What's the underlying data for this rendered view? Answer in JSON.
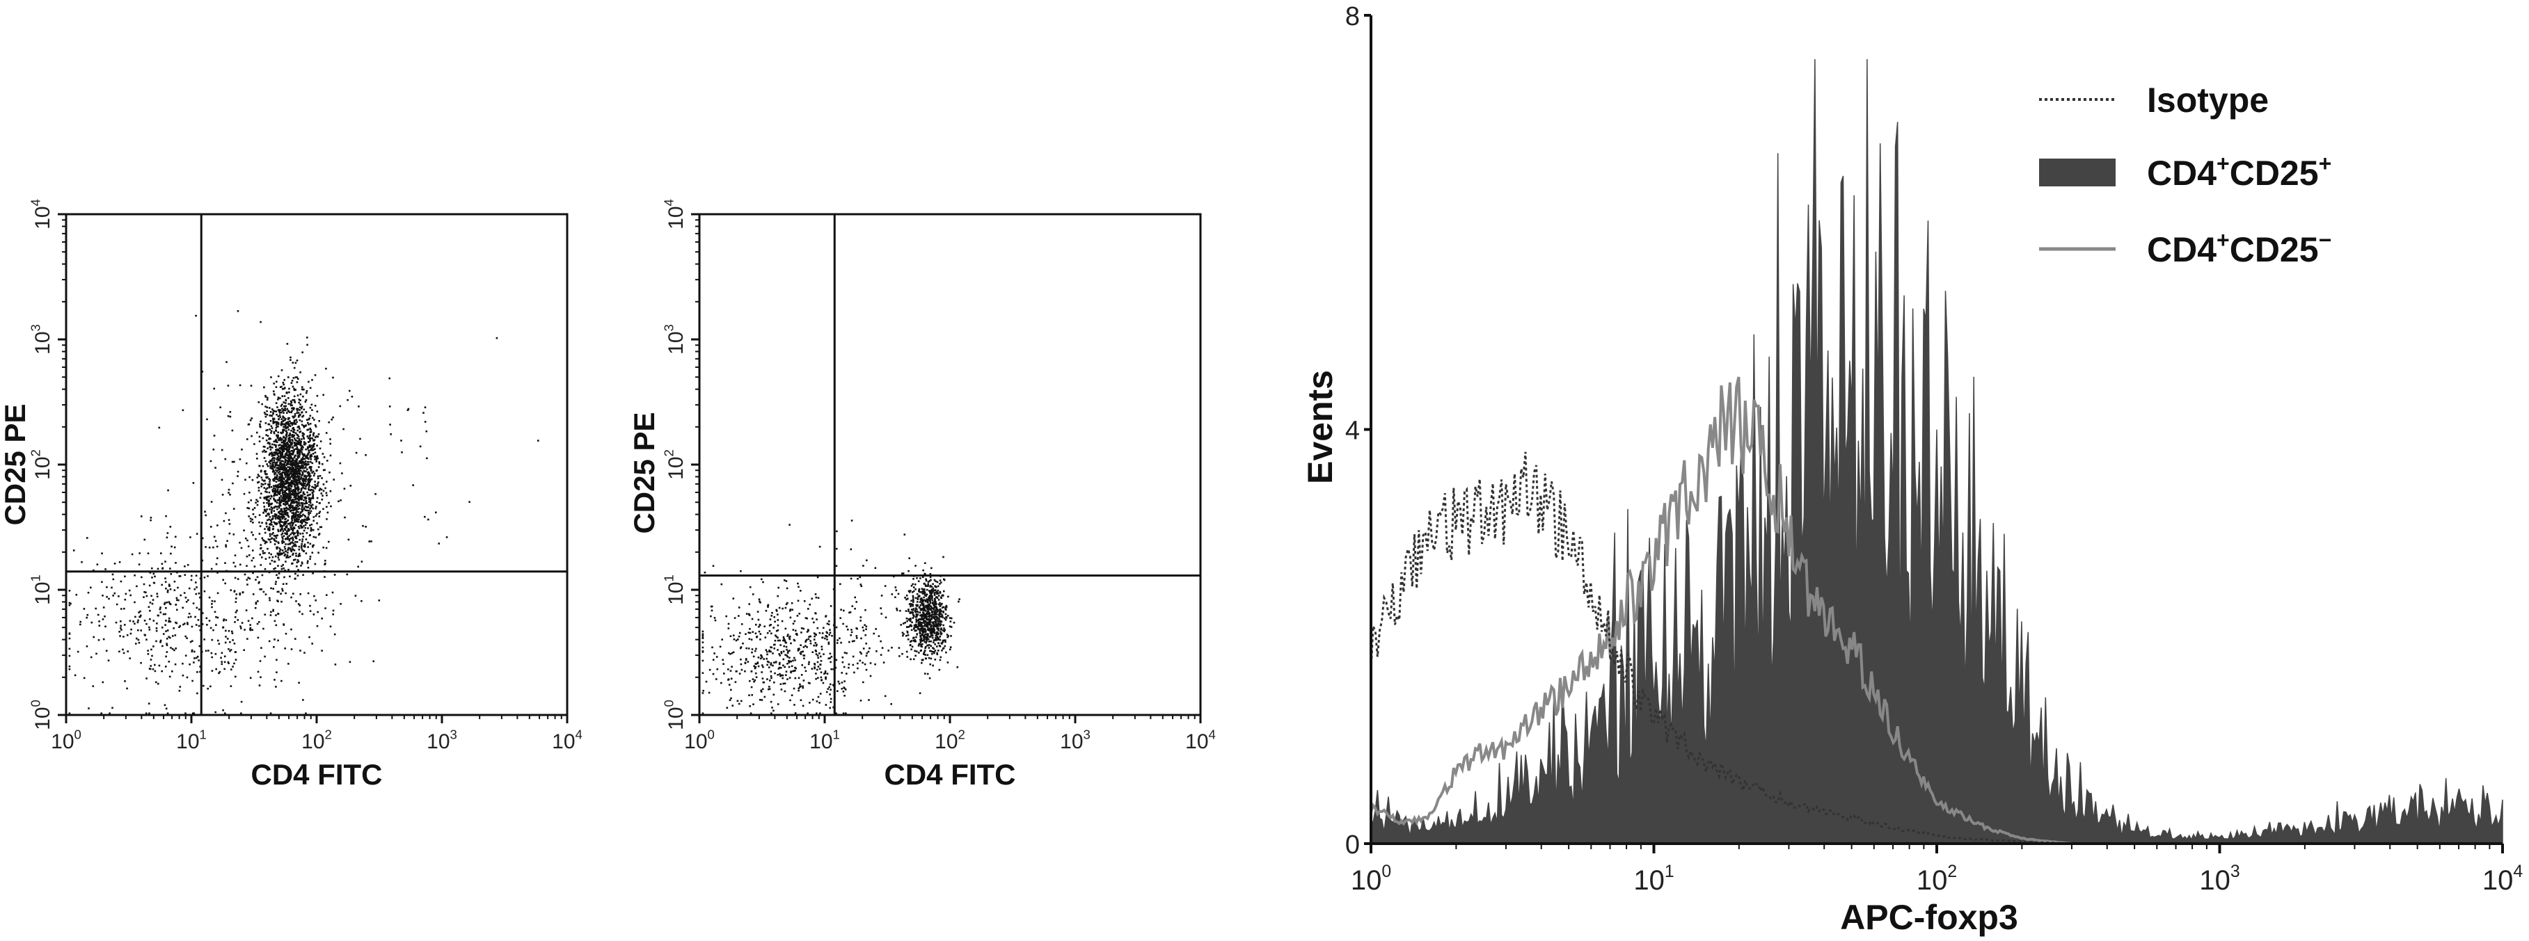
{
  "chart_data": [
    {
      "type": "scatter",
      "xlabel": "CD4 FITC",
      "ylabel": "CD25 PE",
      "x_scale": "log",
      "y_scale": "log",
      "xlim": [
        1,
        10000
      ],
      "ylim": [
        1,
        10000
      ],
      "x_ticks": [
        {
          "v": 1,
          "base": "10",
          "exp": "0"
        },
        {
          "v": 10,
          "base": "10",
          "exp": "1"
        },
        {
          "v": 100,
          "base": "10",
          "exp": "2"
        },
        {
          "v": 1000,
          "base": "10",
          "exp": "3"
        },
        {
          "v": 10000,
          "base": "10",
          "exp": "4"
        }
      ],
      "y_ticks": [
        {
          "v": 1,
          "base": "10",
          "exp": "0"
        },
        {
          "v": 10,
          "base": "10",
          "exp": "1"
        },
        {
          "v": 100,
          "base": "10",
          "exp": "2"
        },
        {
          "v": 1000,
          "base": "10",
          "exp": "3"
        },
        {
          "v": 10000,
          "base": "10",
          "exp": "4"
        }
      ],
      "quadrant_gates": {
        "x": 12,
        "y": 14
      },
      "populations": [
        {
          "count": 2200,
          "center": [
            60,
            80
          ],
          "spread": [
            0.11,
            0.32
          ]
        },
        {
          "count": 500,
          "center": [
            8,
            6
          ],
          "spread": [
            0.45,
            0.35
          ]
        },
        {
          "count": 350,
          "center": [
            45,
            40
          ],
          "spread": [
            0.3,
            0.6
          ]
        },
        {
          "count": 40,
          "center": [
            400,
            120
          ],
          "spread": [
            0.4,
            0.35
          ]
        }
      ]
    },
    {
      "type": "scatter",
      "xlabel": "CD4 FITC",
      "ylabel": "CD25 PE",
      "x_scale": "log",
      "y_scale": "log",
      "xlim": [
        1,
        10000
      ],
      "ylim": [
        1,
        10000
      ],
      "x_ticks": [
        {
          "v": 1,
          "base": "10",
          "exp": "0"
        },
        {
          "v": 10,
          "base": "10",
          "exp": "1"
        },
        {
          "v": 100,
          "base": "10",
          "exp": "2"
        },
        {
          "v": 1000,
          "base": "10",
          "exp": "3"
        },
        {
          "v": 10000,
          "base": "10",
          "exp": "4"
        }
      ],
      "y_ticks": [
        {
          "v": 1,
          "base": "10",
          "exp": "0"
        },
        {
          "v": 10,
          "base": "10",
          "exp": "1"
        },
        {
          "v": 100,
          "base": "10",
          "exp": "2"
        },
        {
          "v": 1000,
          "base": "10",
          "exp": "3"
        },
        {
          "v": 10000,
          "base": "10",
          "exp": "4"
        }
      ],
      "quadrant_gates": {
        "x": 12,
        "y": 13
      },
      "populations": [
        {
          "count": 800,
          "center": [
            65,
            6
          ],
          "spread": [
            0.08,
            0.16
          ]
        },
        {
          "count": 600,
          "center": [
            5,
            3
          ],
          "spread": [
            0.35,
            0.25
          ]
        },
        {
          "count": 60,
          "center": [
            20,
            8
          ],
          "spread": [
            0.3,
            0.3
          ]
        }
      ]
    },
    {
      "type": "area",
      "xlabel": "APC-foxp3",
      "ylabel": "Events",
      "x_scale": "log",
      "xlim": [
        1,
        10000
      ],
      "ylim": [
        0,
        8
      ],
      "x_ticks": [
        {
          "v": 1,
          "base": "10",
          "exp": "0"
        },
        {
          "v": 10,
          "base": "10",
          "exp": "1"
        },
        {
          "v": 100,
          "base": "10",
          "exp": "2"
        },
        {
          "v": 1000,
          "base": "10",
          "exp": "3"
        },
        {
          "v": 10000,
          "base": "10",
          "exp": "4"
        }
      ],
      "y_ticks": [
        {
          "v": 0,
          "label": "0"
        },
        {
          "v": 4,
          "label": "4"
        },
        {
          "v": 8,
          "label": "8"
        }
      ],
      "legend_position": "top-right",
      "legend": [
        {
          "name": "Isotype",
          "sup": "",
          "name2": "",
          "sup2": ""
        },
        {
          "name": "CD4",
          "sup": "+",
          "name2": "CD25",
          "sup2": "+"
        },
        {
          "name": "CD4",
          "sup": "+",
          "name2": "CD25",
          "sup2": "−"
        }
      ],
      "series": [
        {
          "key": "isotype",
          "style": "dotted",
          "color": "#333333",
          "points": [
            [
              1,
              1.9
            ],
            [
              1.1,
              2.1
            ],
            [
              1.3,
              2.5
            ],
            [
              1.5,
              2.8
            ],
            [
              1.8,
              3.1
            ],
            [
              2.1,
              3.1
            ],
            [
              2.5,
              3.2
            ],
            [
              3,
              3.2
            ],
            [
              3.5,
              3.4
            ],
            [
              4,
              3.3
            ],
            [
              4.6,
              3.1
            ],
            [
              5.5,
              2.7
            ],
            [
              6.5,
              2.2
            ],
            [
              7.5,
              1.8
            ],
            [
              9,
              1.4
            ],
            [
              11,
              1.1
            ],
            [
              15,
              0.8
            ],
            [
              20,
              0.6
            ],
            [
              30,
              0.4
            ],
            [
              50,
              0.25
            ],
            [
              80,
              0.12
            ],
            [
              120,
              0.05
            ],
            [
              200,
              0.02
            ],
            [
              300,
              0
            ]
          ]
        },
        {
          "key": "cd25pos",
          "style": "filled",
          "color": "#444444",
          "points": [
            [
              1,
              0.3
            ],
            [
              1.5,
              0.15
            ],
            [
              2,
              0.2
            ],
            [
              3,
              0.4
            ],
            [
              4,
              0.7
            ],
            [
              5,
              0.9
            ],
            [
              6,
              1.2
            ],
            [
              7,
              1.6
            ],
            [
              8,
              1.8
            ],
            [
              10,
              1.9
            ],
            [
              12,
              1.7
            ],
            [
              15,
              2.2
            ],
            [
              18,
              2.6
            ],
            [
              21,
              3.1
            ],
            [
              25,
              3.3
            ],
            [
              30,
              3.6
            ],
            [
              35,
              4.2
            ],
            [
              40,
              4.4
            ],
            [
              45,
              4.5
            ],
            [
              50,
              4.3
            ],
            [
              55,
              4.6
            ],
            [
              60,
              4.4
            ],
            [
              70,
              4.0
            ],
            [
              80,
              3.9
            ],
            [
              100,
              3.4
            ],
            [
              120,
              2.8
            ],
            [
              150,
              2.3
            ],
            [
              200,
              1.5
            ],
            [
              250,
              0.7
            ],
            [
              300,
              0.45
            ],
            [
              400,
              0.25
            ],
            [
              500,
              0.12
            ],
            [
              700,
              0.08
            ],
            [
              1000,
              0.05
            ],
            [
              1500,
              0.12
            ],
            [
              2000,
              0.12
            ],
            [
              3000,
              0.25
            ],
            [
              5000,
              0.32
            ],
            [
              8000,
              0.35
            ],
            [
              10000,
              0.3
            ]
          ]
        },
        {
          "key": "cd25neg",
          "style": "line",
          "color": "#888888",
          "points": [
            [
              1,
              0.35
            ],
            [
              1.3,
              0.2
            ],
            [
              1.6,
              0.25
            ],
            [
              2,
              0.7
            ],
            [
              2.5,
              0.9
            ],
            [
              3,
              0.9
            ],
            [
              4,
              1.3
            ],
            [
              5,
              1.5
            ],
            [
              6,
              1.8
            ],
            [
              7,
              2.0
            ],
            [
              8,
              2.3
            ],
            [
              10,
              2.7
            ],
            [
              12,
              3.2
            ],
            [
              14,
              3.5
            ],
            [
              17,
              4.0
            ],
            [
              20,
              4.1
            ],
            [
              23,
              3.9
            ],
            [
              26,
              3.5
            ],
            [
              30,
              3.1
            ],
            [
              35,
              2.5
            ],
            [
              40,
              2.2
            ],
            [
              50,
              1.9
            ],
            [
              60,
              1.5
            ],
            [
              70,
              1.1
            ],
            [
              80,
              0.8
            ],
            [
              100,
              0.4
            ],
            [
              150,
              0.15
            ],
            [
              200,
              0.05
            ],
            [
              300,
              0
            ]
          ]
        }
      ]
    }
  ]
}
